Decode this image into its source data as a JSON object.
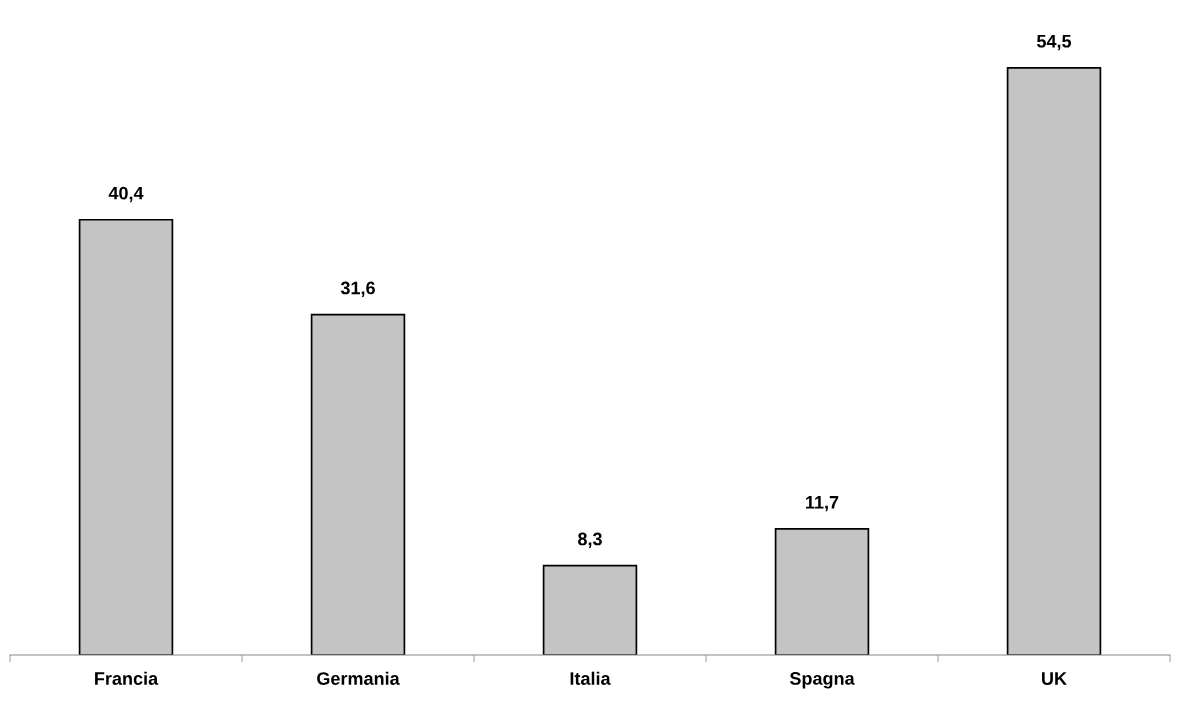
{
  "chart_data": {
    "type": "bar",
    "categories": [
      "Francia",
      "Germania",
      "Italia",
      "Spagna",
      "UK"
    ],
    "values": [
      40.4,
      31.6,
      8.3,
      11.7,
      54.5
    ],
    "value_labels": [
      "40,4",
      "31,6",
      "8,3",
      "11,7",
      "54,5"
    ],
    "color": "#c4c4c4",
    "grid": false,
    "legend": false
  }
}
